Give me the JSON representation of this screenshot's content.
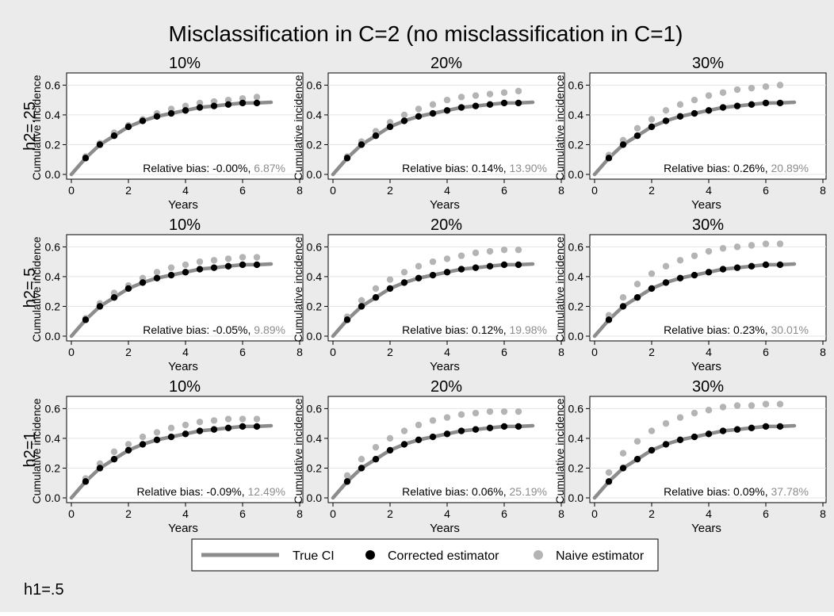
{
  "figure": {
    "title": "Misclassification in C=2 (no misclassification in C=1)",
    "footnote": "h1=.5"
  },
  "legend": {
    "placement": "bottom-center",
    "items": [
      {
        "label": "True CI",
        "symbol": "line",
        "color": "#8c8c8c"
      },
      {
        "label": "Corrected estimator",
        "symbol": "dot",
        "color": "#000000"
      },
      {
        "label": "Naive estimator",
        "symbol": "dot",
        "color": "#b4b4b4"
      }
    ]
  },
  "colors": {
    "true_ci": "#8c8c8c",
    "corrected": "#000000",
    "naive": "#b4b4b4",
    "panel_bg": "#ffffff",
    "figure_bg": "#ebebeb"
  },
  "chart_data": {
    "type": "line",
    "layout": "3x3 grid",
    "x": [
      0.5,
      1.0,
      1.5,
      2.0,
      2.5,
      3.0,
      3.5,
      4.0,
      4.5,
      5.0,
      5.5,
      6.0,
      6.5
    ],
    "xlabel": "Years",
    "ylabel": "Cumulative incidence",
    "xlim": [
      0,
      8
    ],
    "ylim": [
      0,
      0.65
    ],
    "xticks": [
      "0",
      "2",
      "4",
      "6",
      "8"
    ],
    "yticks": [
      "0.0",
      "0.2",
      "0.4",
      "0.6"
    ],
    "grid": true,
    "true_ci_max_x": 7,
    "corrected_values": [
      0.11,
      0.2,
      0.26,
      0.32,
      0.36,
      0.39,
      0.41,
      0.43,
      0.45,
      0.46,
      0.47,
      0.48,
      0.48
    ],
    "row_labels": [
      "h2=.25",
      "h2=.5",
      "h2=1"
    ],
    "panels": [
      {
        "row": 0,
        "title": "10%",
        "bias_label": "Relative bias:",
        "bias_corrected": "-0.00%,",
        "bias_naive": "6.87%",
        "naive": [
          0.12,
          0.21,
          0.28,
          0.33,
          0.37,
          0.41,
          0.44,
          0.46,
          0.48,
          0.49,
          0.5,
          0.51,
          0.52
        ]
      },
      {
        "row": 0,
        "title": "20%",
        "bias_label": "Relative bias:",
        "bias_corrected": "0.14%,",
        "bias_naive": "13.90%",
        "naive": [
          0.12,
          0.22,
          0.29,
          0.35,
          0.4,
          0.44,
          0.47,
          0.5,
          0.52,
          0.53,
          0.54,
          0.55,
          0.56
        ]
      },
      {
        "row": 0,
        "title": "30%",
        "bias_label": "Relative bias:",
        "bias_corrected": "0.26%,",
        "bias_naive": "20.89%",
        "naive": [
          0.13,
          0.23,
          0.31,
          0.37,
          0.43,
          0.47,
          0.5,
          0.53,
          0.55,
          0.57,
          0.58,
          0.59,
          0.6
        ]
      },
      {
        "row": 1,
        "title": "10%",
        "bias_label": "Relative bias:",
        "bias_corrected": "-0.05%,",
        "bias_naive": "9.89%",
        "naive": [
          0.12,
          0.22,
          0.29,
          0.34,
          0.39,
          0.43,
          0.46,
          0.48,
          0.5,
          0.51,
          0.52,
          0.53,
          0.53
        ]
      },
      {
        "row": 1,
        "title": "20%",
        "bias_label": "Relative bias:",
        "bias_corrected": "0.12%,",
        "bias_naive": "19.98%",
        "naive": [
          0.13,
          0.24,
          0.32,
          0.38,
          0.43,
          0.47,
          0.5,
          0.52,
          0.54,
          0.56,
          0.57,
          0.58,
          0.58
        ]
      },
      {
        "row": 1,
        "title": "30%",
        "bias_label": "Relative bias:",
        "bias_corrected": "0.23%,",
        "bias_naive": "30.01%",
        "naive": [
          0.14,
          0.26,
          0.35,
          0.42,
          0.47,
          0.51,
          0.54,
          0.57,
          0.59,
          0.6,
          0.61,
          0.62,
          0.62
        ]
      },
      {
        "row": 2,
        "title": "10%",
        "bias_label": "Relative bias:",
        "bias_corrected": "-0.09%,",
        "bias_naive": "12.49%",
        "naive": [
          0.13,
          0.23,
          0.31,
          0.36,
          0.41,
          0.44,
          0.47,
          0.49,
          0.51,
          0.52,
          0.53,
          0.53,
          0.53
        ]
      },
      {
        "row": 2,
        "title": "20%",
        "bias_label": "Relative bias:",
        "bias_corrected": "0.06%,",
        "bias_naive": "25.19%",
        "naive": [
          0.15,
          0.26,
          0.34,
          0.4,
          0.45,
          0.49,
          0.52,
          0.54,
          0.56,
          0.57,
          0.58,
          0.58,
          0.58
        ]
      },
      {
        "row": 2,
        "title": "30%",
        "bias_label": "Relative bias:",
        "bias_corrected": "0.09%,",
        "bias_naive": "37.78%",
        "naive": [
          0.17,
          0.3,
          0.38,
          0.45,
          0.5,
          0.54,
          0.57,
          0.59,
          0.61,
          0.62,
          0.62,
          0.63,
          0.63
        ]
      }
    ]
  }
}
